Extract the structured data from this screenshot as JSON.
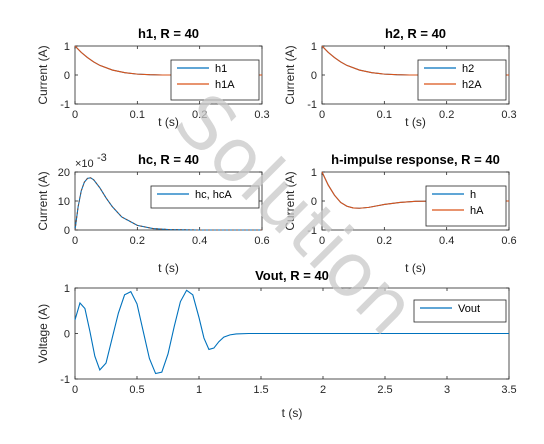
{
  "watermark": "Solution",
  "colors": {
    "blue": "#0072BD",
    "orange": "#D95319",
    "axis": "#262626",
    "watermark": "#c8c8c8"
  },
  "chart_data": [
    {
      "type": "line",
      "title": "h1, R = 40",
      "xlabel": "t (s)",
      "ylabel": "Current (A)",
      "xlim": [
        0,
        0.3
      ],
      "ylim": [
        -1,
        1
      ],
      "xticks": [
        "0",
        "0.1",
        "0.2",
        "0.3"
      ],
      "yticks": [
        "-1",
        "0",
        "1"
      ],
      "legend_position": "right",
      "series": [
        {
          "name": "h1",
          "x": [
            0,
            0.01,
            0.02,
            0.03,
            0.04,
            0.06,
            0.08,
            0.1,
            0.12,
            0.14,
            0.16,
            0.3
          ],
          "values": [
            1,
            0.78,
            0.6,
            0.45,
            0.33,
            0.17,
            0.08,
            0.03,
            0.01,
            0,
            0,
            0
          ]
        },
        {
          "name": "h1A",
          "x": [
            0,
            0.01,
            0.02,
            0.03,
            0.04,
            0.06,
            0.08,
            0.1,
            0.12,
            0.14,
            0.16,
            0.3
          ],
          "values": [
            1,
            0.78,
            0.6,
            0.45,
            0.33,
            0.17,
            0.08,
            0.03,
            0.01,
            0,
            0,
            0
          ]
        }
      ]
    },
    {
      "type": "line",
      "title": "h2, R = 40",
      "xlabel": "t (s)",
      "ylabel": "Current (A)",
      "xlim": [
        0,
        0.3
      ],
      "ylim": [
        -1,
        1
      ],
      "xticks": [
        "0",
        "0.1",
        "0.2",
        "0.3"
      ],
      "yticks": [
        "-1",
        "0",
        "1"
      ],
      "legend_position": "right",
      "series": [
        {
          "name": "h2",
          "x": [
            0,
            0.01,
            0.02,
            0.03,
            0.04,
            0.06,
            0.08,
            0.1,
            0.12,
            0.14,
            0.16,
            0.3
          ],
          "values": [
            1,
            0.78,
            0.6,
            0.45,
            0.33,
            0.17,
            0.08,
            0.03,
            0.01,
            0,
            0,
            0
          ]
        },
        {
          "name": "h2A",
          "x": [
            0,
            0.01,
            0.02,
            0.03,
            0.04,
            0.06,
            0.08,
            0.1,
            0.12,
            0.14,
            0.16,
            0.3
          ],
          "values": [
            1,
            0.78,
            0.6,
            0.45,
            0.33,
            0.17,
            0.08,
            0.03,
            0.01,
            0,
            0,
            0
          ]
        }
      ]
    },
    {
      "type": "line",
      "title": "hc, R = 40",
      "xlabel": "t (s)",
      "ylabel": "Current (A)",
      "exponent": "×10",
      "exponent_power": "-3",
      "xlim": [
        0,
        0.6
      ],
      "ylim": [
        0,
        20
      ],
      "xticks": [
        "0",
        "0.2",
        "0.4",
        "0.6"
      ],
      "yticks": [
        "0",
        "10",
        "20"
      ],
      "legend_position": "top-right",
      "series": [
        {
          "name": "hc, hcA",
          "x": [
            0,
            0.01,
            0.02,
            0.03,
            0.04,
            0.05,
            0.06,
            0.08,
            0.1,
            0.12,
            0.15,
            0.2,
            0.25,
            0.3,
            0.4,
            0.6
          ],
          "values": [
            0,
            8,
            13.5,
            16.5,
            17.8,
            18,
            17.3,
            14.5,
            11,
            8,
            4.5,
            1.6,
            0.5,
            0.15,
            0,
            0
          ]
        }
      ]
    },
    {
      "type": "line",
      "title": "h-impulse response, R = 40",
      "xlabel": "t (s)",
      "ylabel": "Current (A)",
      "xlim": [
        0,
        0.6
      ],
      "ylim": [
        -1,
        1
      ],
      "xticks": [
        "0",
        "0.2",
        "0.4",
        "0.6"
      ],
      "yticks": [
        "-1",
        "0",
        "1"
      ],
      "legend_position": "right",
      "series": [
        {
          "name": "h",
          "x": [
            0,
            0.02,
            0.04,
            0.06,
            0.08,
            0.1,
            0.12,
            0.15,
            0.18,
            0.2,
            0.25,
            0.3,
            0.4,
            0.6
          ],
          "values": [
            1,
            0.55,
            0.2,
            -0.05,
            -0.18,
            -0.24,
            -0.25,
            -0.22,
            -0.16,
            -0.12,
            -0.05,
            -0.01,
            0,
            0
          ]
        },
        {
          "name": "hA",
          "x": [
            0,
            0.02,
            0.04,
            0.06,
            0.08,
            0.1,
            0.12,
            0.15,
            0.18,
            0.2,
            0.25,
            0.3,
            0.4,
            0.6
          ],
          "values": [
            1,
            0.55,
            0.2,
            -0.05,
            -0.18,
            -0.24,
            -0.25,
            -0.22,
            -0.16,
            -0.12,
            -0.05,
            -0.01,
            0,
            0
          ]
        }
      ]
    },
    {
      "type": "line",
      "title": "Vout, R = 40",
      "xlabel": "t (s)",
      "ylabel": "Voltage (A)",
      "xlim": [
        0,
        3.5
      ],
      "ylim": [
        -1,
        1
      ],
      "xticks": [
        "0",
        "0.5",
        "1",
        "1.5",
        "2",
        "2.5",
        "3",
        "3.5"
      ],
      "yticks": [
        "-1",
        "0",
        "1"
      ],
      "legend_position": "top-right",
      "series": [
        {
          "name": "Vout",
          "x": [
            0,
            0.04,
            0.08,
            0.12,
            0.16,
            0.2,
            0.25,
            0.3,
            0.35,
            0.4,
            0.45,
            0.5,
            0.55,
            0.6,
            0.65,
            0.7,
            0.75,
            0.8,
            0.85,
            0.9,
            0.95,
            1.0,
            1.04,
            1.08,
            1.12,
            1.16,
            1.2,
            1.25,
            1.3,
            1.4,
            1.6,
            2.0,
            3.5
          ],
          "values": [
            0.3,
            0.67,
            0.55,
            0.05,
            -0.5,
            -0.8,
            -0.65,
            -0.1,
            0.45,
            0.85,
            0.92,
            0.65,
            0.05,
            -0.55,
            -0.88,
            -0.85,
            -0.45,
            0.15,
            0.7,
            0.95,
            0.85,
            0.35,
            -0.1,
            -0.35,
            -0.32,
            -0.18,
            -0.08,
            -0.03,
            -0.01,
            0,
            0,
            0,
            0
          ]
        }
      ]
    }
  ]
}
